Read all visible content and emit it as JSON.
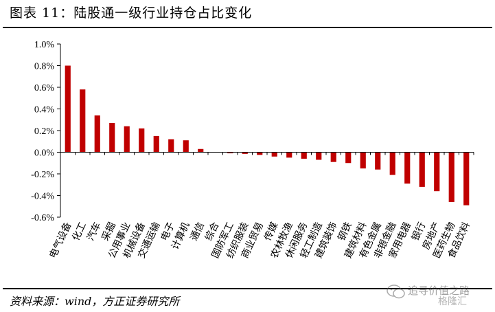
{
  "header": {
    "title": "图表 11：陆股通一级行业持仓占比变化"
  },
  "footer": {
    "source": "资料来源：wind，方正证券研究所"
  },
  "watermark": {
    "line1": "追寻价值之路",
    "line2": "格隆汇",
    "icon": "wechat-icon"
  },
  "colors": {
    "bar": "#C00000",
    "axis": "#000000"
  },
  "chart_data": {
    "type": "bar",
    "title": "",
    "xlabel": "",
    "ylabel": "",
    "ylim": [
      -0.006,
      0.01
    ],
    "yticks": [
      "1.0%",
      "0.8%",
      "0.6%",
      "0.4%",
      "0.2%",
      "0.0%",
      "-0.2%",
      "-0.4%",
      "-0.6%"
    ],
    "ytick_values": [
      0.01,
      0.008,
      0.006,
      0.004,
      0.002,
      0.0,
      -0.002,
      -0.004,
      -0.006
    ],
    "categories": [
      "电气设备",
      "化工",
      "汽车",
      "采掘",
      "公用事业",
      "机械设备",
      "交通运输",
      "电子",
      "计算机",
      "通信",
      "综合",
      "国防军工",
      "纺织服装",
      "商业贸易",
      "传媒",
      "农林牧渔",
      "休闲服务",
      "轻工制造",
      "建筑装饰",
      "钢铁",
      "建筑材料",
      "有色金属",
      "非银金融",
      "家用电器",
      "银行",
      "房地产",
      "医药生物",
      "食品饮料"
    ],
    "values": [
      0.008,
      0.0058,
      0.0034,
      0.0027,
      0.0024,
      0.0022,
      0.0015,
      0.0012,
      0.0011,
      0.0003,
      0.0,
      -0.0001,
      -0.00015,
      -0.00025,
      -0.0004,
      -0.0005,
      -0.0006,
      -0.0007,
      -0.0009,
      -0.001,
      -0.0015,
      -0.0016,
      -0.0021,
      -0.0029,
      -0.0032,
      -0.0036,
      -0.0046,
      -0.0049
    ],
    "grid": false,
    "legend": "none"
  }
}
